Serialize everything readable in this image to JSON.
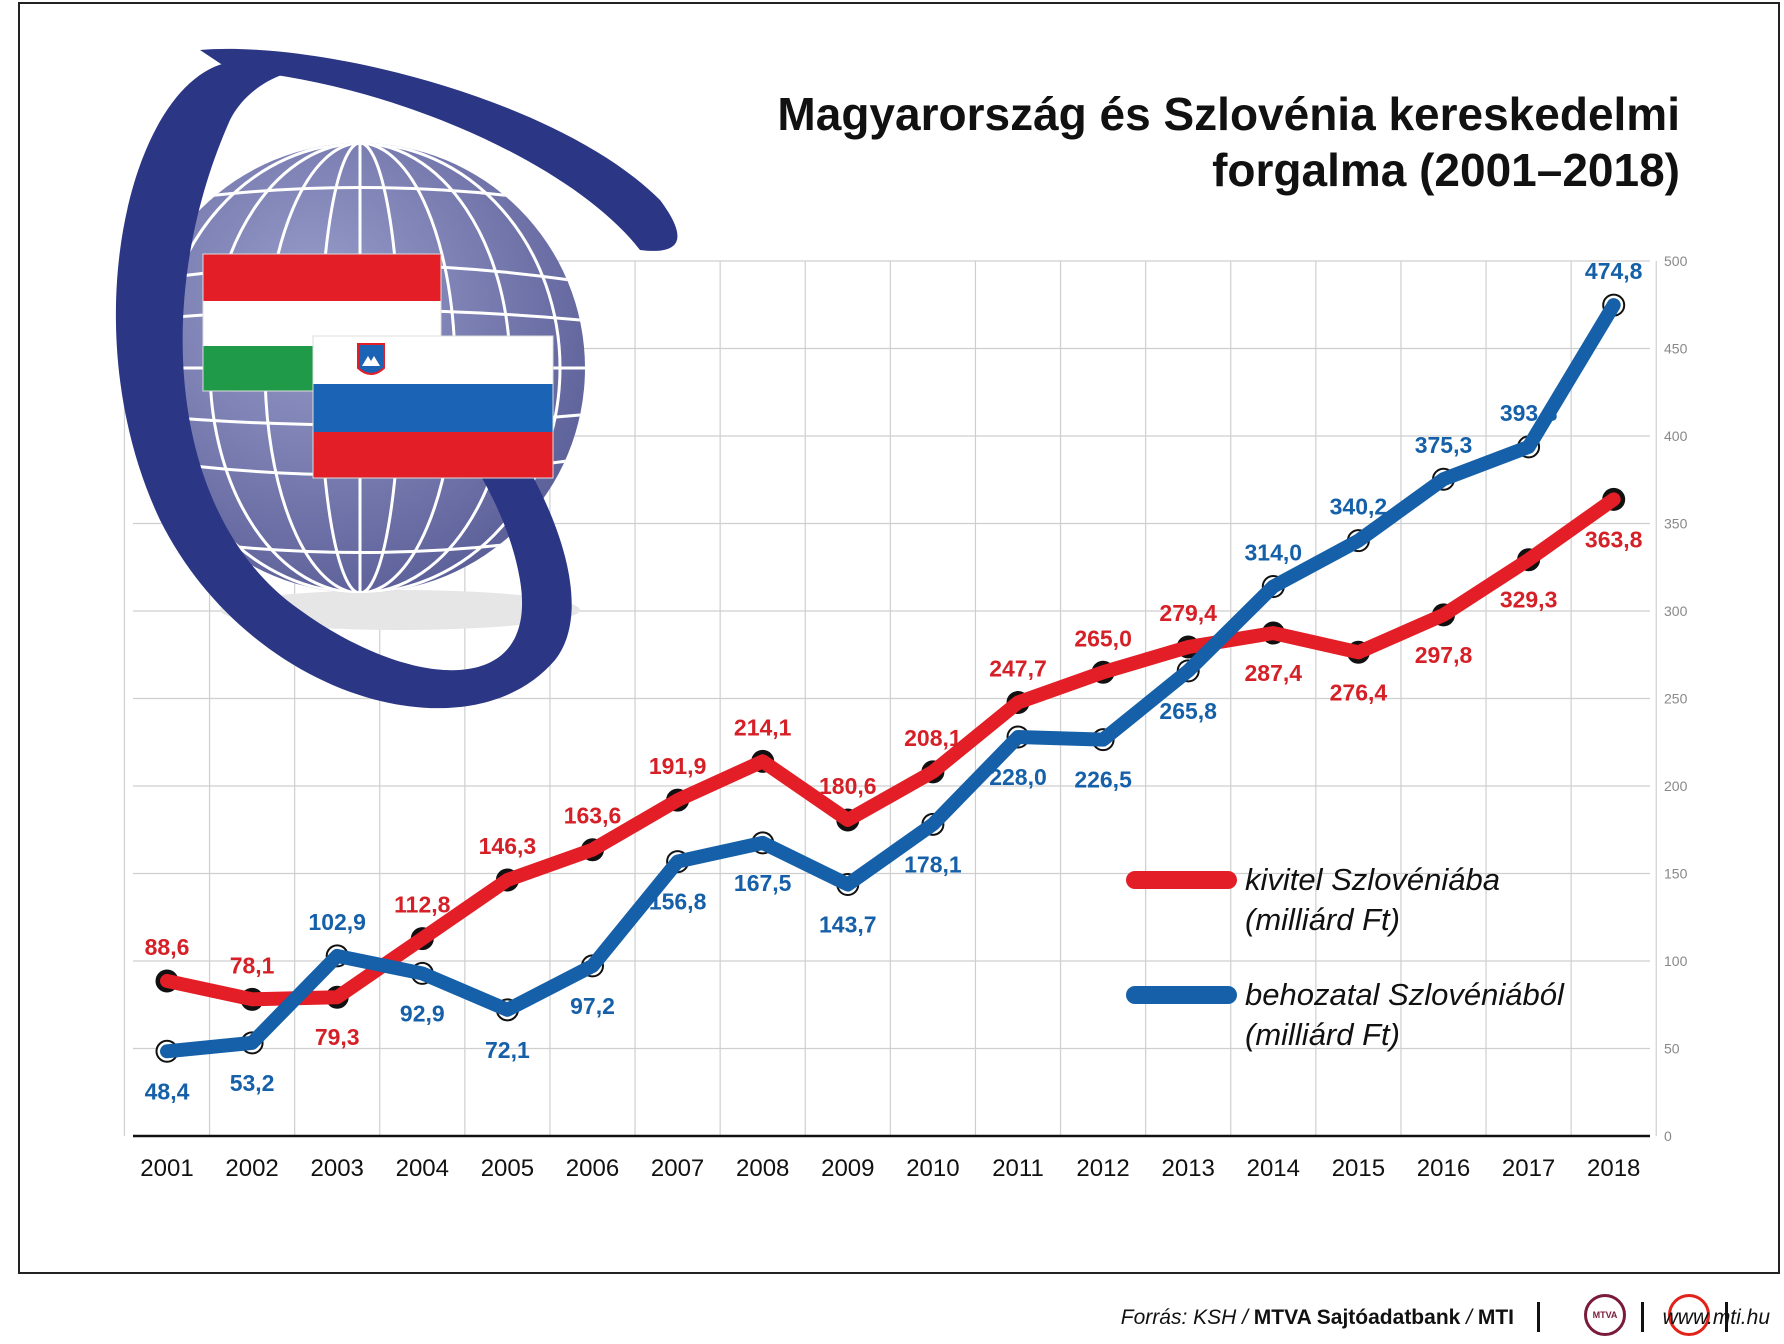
{
  "chart_data": {
    "type": "line",
    "title": "Magyarország és Szlovénia kereskedelmi forgalma (2001–2018)",
    "title_lines": [
      "Magyarország és Szlovénia kereskedelmi",
      "forgalma (2001–2018)"
    ],
    "categories": [
      "2001",
      "2002",
      "2003",
      "2004",
      "2005",
      "2006",
      "2007",
      "2008",
      "2009",
      "2010",
      "2011",
      "2012",
      "2013",
      "2014",
      "2015",
      "2016",
      "2017",
      "2018"
    ],
    "ylim": [
      0,
      500
    ],
    "yticks": [
      "0",
      "50",
      "100",
      "150",
      "200",
      "250",
      "300",
      "350",
      "400",
      "450",
      "500"
    ],
    "grid": true,
    "legend_position": "right",
    "series": [
      {
        "name": "kivitel Szlovéniába (milliárd Ft)",
        "legend_lines": [
          "kivitel Szlovéniába",
          "(milliárd Ft)"
        ],
        "color": "#e31e26",
        "label_color": "#d62027",
        "marker": "filled-black",
        "values": [
          88.6,
          78.1,
          79.3,
          112.8,
          146.3,
          163.6,
          191.9,
          214.1,
          180.6,
          208.1,
          247.7,
          265.0,
          279.4,
          287.4,
          276.4,
          297.8,
          329.3,
          363.8
        ],
        "labels": [
          "88,6",
          "78,1",
          "79,3",
          "112,8",
          "146,3",
          "163,6",
          "191,9",
          "214,1",
          "180,6",
          "208,1",
          "247,7",
          "265,0",
          "279,4",
          "287,4",
          "276,4",
          "297,8",
          "329,3",
          "363,8"
        ]
      },
      {
        "name": "behozatal Szlovéniából (milliárd Ft)",
        "legend_lines": [
          "behozatal Szlovéniából",
          "(milliárd Ft)"
        ],
        "color": "#1560a8",
        "label_color": "#1560a8",
        "marker": "hollow-white",
        "values": [
          48.4,
          53.2,
          102.9,
          92.9,
          72.1,
          97.2,
          156.8,
          167.5,
          143.7,
          178.1,
          228.0,
          226.5,
          265.8,
          314.0,
          340.2,
          375.3,
          393.8,
          474.8
        ],
        "labels": [
          "48,4",
          "53,2",
          "102,9",
          "92,9",
          "72,1",
          "97,2",
          "156,8",
          "167,5",
          "143,7",
          "178,1",
          "228,0",
          "226,5",
          "265,8",
          "314,0",
          "340,2",
          "375,3",
          "393,8",
          "474,8"
        ]
      }
    ]
  },
  "illustration": {
    "globe_color": "#7b7fb5",
    "orbit_color": "#2b3685",
    "flags": [
      "hungary-flag",
      "slovenia-flag"
    ]
  },
  "footer": {
    "source_prefix": "Forrás: KSH / ",
    "source_bold": "MTVA Sajtóadatbank",
    "source_mid": " / ",
    "source_bold2": "MTI",
    "mtva_logo_text": "MTVA",
    "website": "www.mti.hu"
  }
}
